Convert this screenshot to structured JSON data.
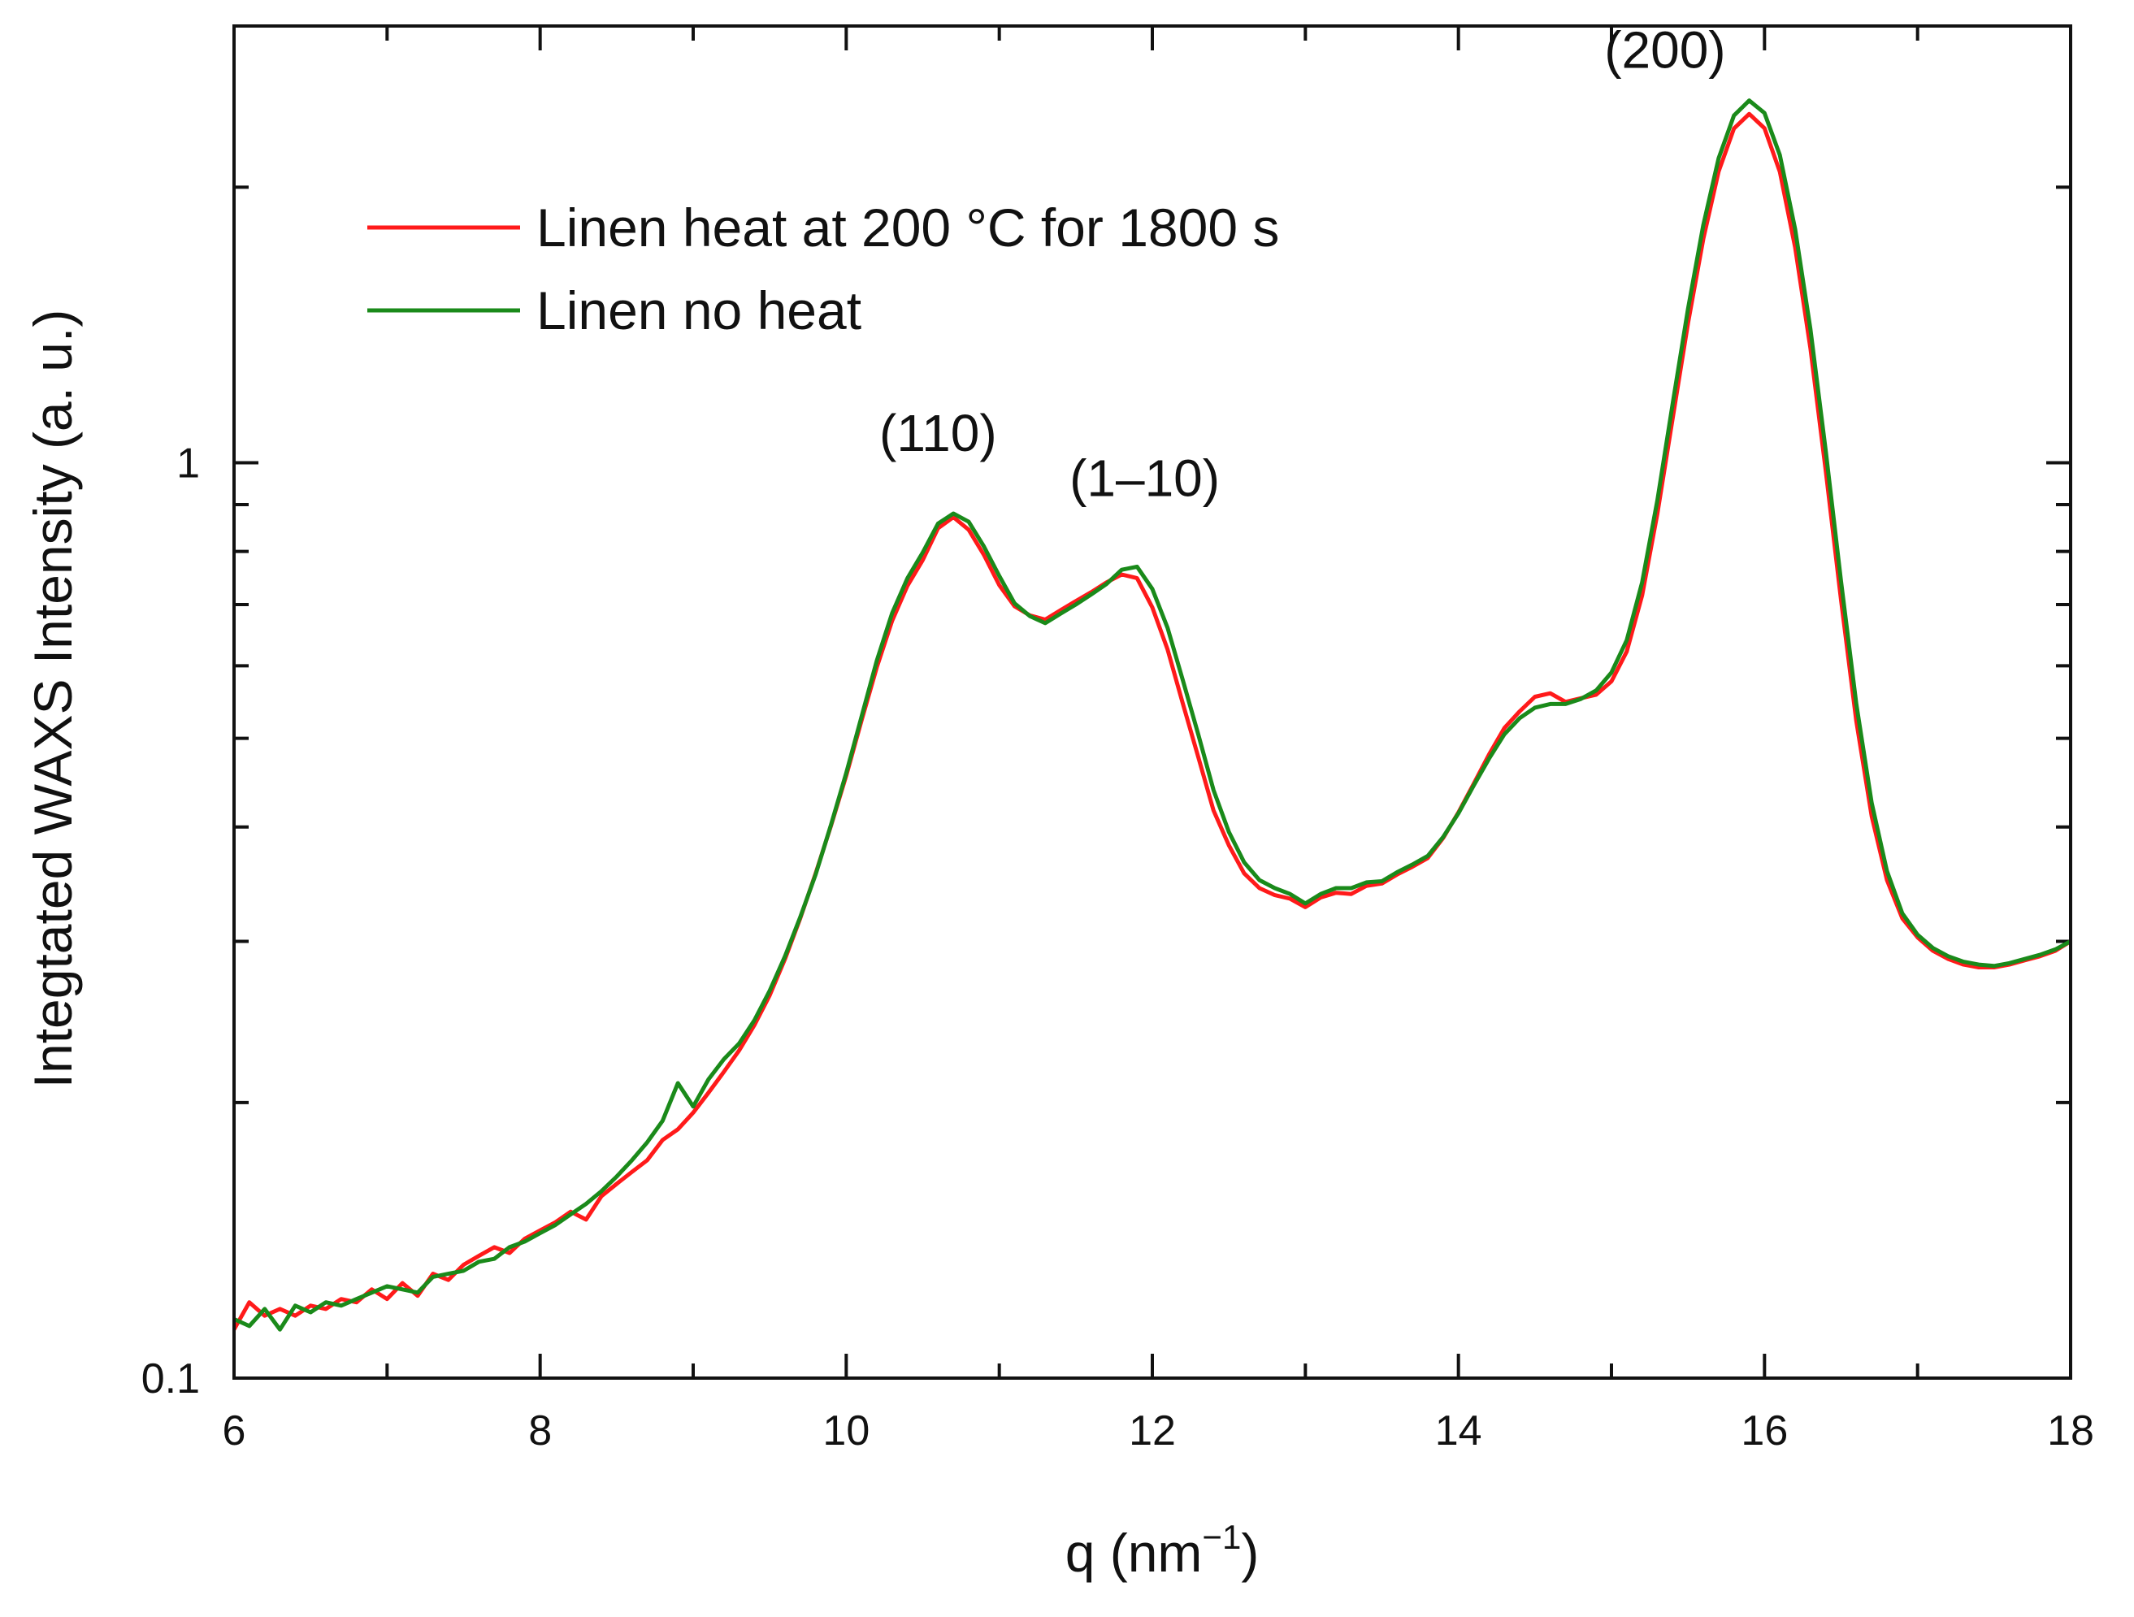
{
  "chart_data": {
    "type": "line",
    "xlabel_main": "q (nm",
    "xlabel_sup": "−1",
    "xlabel_end": ")",
    "ylabel": "Integtated WAXS Intensity (a. u.)",
    "xlim": [
      6,
      18
    ],
    "ylim": [
      0.1,
      3.0
    ],
    "yscale": "log",
    "x_ticks": [
      6,
      8,
      10,
      12,
      14,
      16,
      18
    ],
    "x_tick_labels": [
      "6",
      "8",
      "10",
      "12",
      "14",
      "16",
      "18"
    ],
    "y_ticks": [
      0.1,
      1
    ],
    "y_tick_labels": [
      "0.1",
      "1"
    ],
    "legend": [
      {
        "label": "Linen heat at 200 °C for 1800 s",
        "color": "#ff1a1a"
      },
      {
        "label": "Linen no heat",
        "color": "#1a8a1a"
      }
    ],
    "annotations": [
      {
        "text": "(110)",
        "x": 10.6,
        "y": 1.03
      },
      {
        "text": "(1–10)",
        "x": 11.95,
        "y": 0.92
      },
      {
        "text": "(200)",
        "x": 15.35,
        "y": 2.7
      }
    ],
    "series": [
      {
        "name": "Linen heat at 200 °C for 1800 s",
        "color": "#ff1a1a",
        "x": [
          6.0,
          6.1,
          6.2,
          6.3,
          6.4,
          6.5,
          6.6,
          6.7,
          6.8,
          6.9,
          7.0,
          7.1,
          7.2,
          7.3,
          7.4,
          7.5,
          7.6,
          7.7,
          7.8,
          7.9,
          8.0,
          8.1,
          8.2,
          8.3,
          8.4,
          8.5,
          8.6,
          8.7,
          8.8,
          8.9,
          9.0,
          9.1,
          9.2,
          9.3,
          9.4,
          9.5,
          9.6,
          9.7,
          9.8,
          9.9,
          10.0,
          10.1,
          10.2,
          10.3,
          10.4,
          10.5,
          10.6,
          10.7,
          10.8,
          10.9,
          11.0,
          11.1,
          11.2,
          11.3,
          11.4,
          11.5,
          11.6,
          11.7,
          11.8,
          11.9,
          12.0,
          12.1,
          12.2,
          12.3,
          12.4,
          12.5,
          12.6,
          12.7,
          12.8,
          12.9,
          13.0,
          13.1,
          13.2,
          13.3,
          13.4,
          13.5,
          13.6,
          13.7,
          13.8,
          13.9,
          14.0,
          14.1,
          14.2,
          14.3,
          14.4,
          14.5,
          14.6,
          14.7,
          14.8,
          14.9,
          15.0,
          15.1,
          15.2,
          15.3,
          15.4,
          15.5,
          15.6,
          15.7,
          15.8,
          15.9,
          16.0,
          16.1,
          16.2,
          16.3,
          16.4,
          16.5,
          16.6,
          16.7,
          16.8,
          16.9,
          17.0,
          17.1,
          17.2,
          17.3,
          17.4,
          17.5,
          17.6,
          17.7,
          17.8,
          17.9,
          18.0
        ],
        "y": [
          0.113,
          0.121,
          0.117,
          0.119,
          0.117,
          0.12,
          0.119,
          0.122,
          0.121,
          0.125,
          0.122,
          0.127,
          0.123,
          0.13,
          0.128,
          0.133,
          0.136,
          0.139,
          0.137,
          0.142,
          0.145,
          0.148,
          0.152,
          0.149,
          0.158,
          0.163,
          0.168,
          0.173,
          0.182,
          0.187,
          0.195,
          0.205,
          0.216,
          0.228,
          0.243,
          0.262,
          0.287,
          0.318,
          0.356,
          0.401,
          0.455,
          0.523,
          0.598,
          0.672,
          0.734,
          0.783,
          0.848,
          0.872,
          0.845,
          0.793,
          0.735,
          0.697,
          0.681,
          0.674,
          0.69,
          0.706,
          0.722,
          0.74,
          0.755,
          0.748,
          0.695,
          0.625,
          0.545,
          0.477,
          0.417,
          0.382,
          0.356,
          0.343,
          0.337,
          0.334,
          0.327,
          0.335,
          0.339,
          0.338,
          0.345,
          0.347,
          0.355,
          0.362,
          0.37,
          0.389,
          0.415,
          0.446,
          0.48,
          0.513,
          0.535,
          0.555,
          0.56,
          0.548,
          0.553,
          0.558,
          0.577,
          0.622,
          0.716,
          0.88,
          1.118,
          1.421,
          1.756,
          2.08,
          2.318,
          2.405,
          2.32,
          2.079,
          1.719,
          1.334,
          0.98,
          0.708,
          0.522,
          0.411,
          0.35,
          0.318,
          0.303,
          0.293,
          0.287,
          0.283,
          0.281,
          0.281,
          0.283,
          0.286,
          0.289,
          0.293,
          0.3
        ]
      },
      {
        "name": "Linen no heat",
        "color": "#1a8a1a",
        "x": [
          6.0,
          6.1,
          6.2,
          6.3,
          6.4,
          6.5,
          6.6,
          6.7,
          6.8,
          6.9,
          7.0,
          7.1,
          7.2,
          7.3,
          7.4,
          7.5,
          7.6,
          7.7,
          7.8,
          7.9,
          8.0,
          8.1,
          8.2,
          8.3,
          8.4,
          8.5,
          8.6,
          8.7,
          8.8,
          8.9,
          9.0,
          9.1,
          9.2,
          9.3,
          9.4,
          9.5,
          9.6,
          9.7,
          9.8,
          9.9,
          10.0,
          10.1,
          10.2,
          10.3,
          10.4,
          10.5,
          10.6,
          10.7,
          10.8,
          10.9,
          11.0,
          11.1,
          11.2,
          11.3,
          11.4,
          11.5,
          11.6,
          11.7,
          11.8,
          11.9,
          12.0,
          12.1,
          12.2,
          12.3,
          12.4,
          12.5,
          12.6,
          12.7,
          12.8,
          12.9,
          13.0,
          13.1,
          13.2,
          13.3,
          13.4,
          13.5,
          13.6,
          13.7,
          13.8,
          13.9,
          14.0,
          14.1,
          14.2,
          14.3,
          14.4,
          14.5,
          14.6,
          14.7,
          14.8,
          14.9,
          15.0,
          15.1,
          15.2,
          15.3,
          15.4,
          15.5,
          15.6,
          15.7,
          15.8,
          15.9,
          16.0,
          16.1,
          16.2,
          16.3,
          16.4,
          16.5,
          16.6,
          16.7,
          16.8,
          16.9,
          17.0,
          17.1,
          17.2,
          17.3,
          17.4,
          17.5,
          17.6,
          17.7,
          17.8,
          17.9,
          18.0
        ],
        "y": [
          0.116,
          0.114,
          0.119,
          0.113,
          0.12,
          0.118,
          0.121,
          0.12,
          0.122,
          0.124,
          0.126,
          0.125,
          0.124,
          0.129,
          0.13,
          0.131,
          0.134,
          0.135,
          0.139,
          0.141,
          0.144,
          0.147,
          0.151,
          0.155,
          0.16,
          0.166,
          0.173,
          0.181,
          0.191,
          0.21,
          0.198,
          0.212,
          0.223,
          0.232,
          0.246,
          0.265,
          0.289,
          0.319,
          0.355,
          0.402,
          0.458,
          0.528,
          0.608,
          0.685,
          0.748,
          0.798,
          0.858,
          0.88,
          0.862,
          0.81,
          0.752,
          0.702,
          0.68,
          0.668,
          0.684,
          0.7,
          0.718,
          0.737,
          0.764,
          0.77,
          0.728,
          0.66,
          0.578,
          0.505,
          0.439,
          0.395,
          0.366,
          0.35,
          0.343,
          0.338,
          0.33,
          0.338,
          0.343,
          0.343,
          0.348,
          0.349,
          0.357,
          0.364,
          0.372,
          0.39,
          0.414,
          0.444,
          0.475,
          0.505,
          0.526,
          0.54,
          0.545,
          0.545,
          0.552,
          0.564,
          0.59,
          0.64,
          0.74,
          0.91,
          1.16,
          1.473,
          1.818,
          2.15,
          2.395,
          2.487,
          2.41,
          2.168,
          1.8,
          1.4,
          1.03,
          0.742,
          0.545,
          0.425,
          0.358,
          0.322,
          0.305,
          0.295,
          0.289,
          0.285,
          0.283,
          0.282,
          0.284,
          0.287,
          0.29,
          0.294,
          0.3
        ]
      }
    ]
  }
}
